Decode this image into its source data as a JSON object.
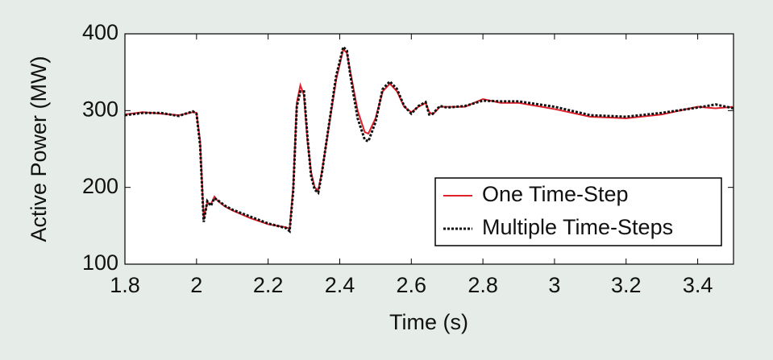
{
  "chart_data": {
    "type": "line",
    "xlabel": "Time (s)",
    "ylabel": "Active Power (MW)",
    "x": [
      1.8,
      1.85,
      1.9,
      1.95,
      1.99,
      2.0,
      2.01,
      2.02,
      2.03,
      2.04,
      2.05,
      2.06,
      2.08,
      2.1,
      2.15,
      2.2,
      2.25,
      2.26,
      2.27,
      2.28,
      2.29,
      2.3,
      2.31,
      2.32,
      2.33,
      2.34,
      2.35,
      2.37,
      2.39,
      2.41,
      2.42,
      2.43,
      2.45,
      2.47,
      2.48,
      2.5,
      2.52,
      2.54,
      2.56,
      2.58,
      2.6,
      2.62,
      2.64,
      2.65,
      2.66,
      2.68,
      2.7,
      2.75,
      2.8,
      2.85,
      2.9,
      3.0,
      3.1,
      3.2,
      3.3,
      3.4,
      3.45,
      3.5
    ],
    "series": [
      {
        "name": "One Time-Step",
        "color": "#e0202a",
        "dash": "solid",
        "values": [
          295,
          298,
          296,
          294,
          298,
          297,
          260,
          160,
          180,
          178,
          188,
          182,
          175,
          170,
          160,
          152,
          148,
          146,
          200,
          310,
          333,
          320,
          260,
          220,
          200,
          196,
          220,
          280,
          340,
          380,
          375,
          350,
          300,
          272,
          270,
          290,
          325,
          335,
          325,
          305,
          298,
          305,
          310,
          298,
          295,
          305,
          305,
          305,
          315,
          310,
          310,
          302,
          292,
          290,
          295,
          305,
          303,
          305
        ]
      },
      {
        "name": "Multiple Time-Steps",
        "color": "#111111",
        "dash": "dotted",
        "values": [
          294,
          297,
          297,
          293,
          299,
          296,
          255,
          155,
          182,
          176,
          186,
          183,
          176,
          171,
          162,
          153,
          147,
          143,
          195,
          305,
          325,
          325,
          265,
          215,
          197,
          193,
          218,
          282,
          345,
          383,
          378,
          345,
          290,
          262,
          260,
          285,
          328,
          338,
          328,
          306,
          296,
          306,
          311,
          295,
          296,
          306,
          304,
          306,
          313,
          312,
          312,
          305,
          294,
          292,
          297,
          304,
          308,
          303
        ]
      }
    ],
    "xlim": [
      1.8,
      3.5
    ],
    "xticks": [
      1.8,
      2,
      2.2,
      2.4,
      2.6,
      2.8,
      3,
      3.2,
      3.4
    ],
    "ylim": [
      100,
      400
    ],
    "yticks": [
      100,
      200,
      300,
      400
    ],
    "grid": false,
    "legend": "lower right"
  }
}
